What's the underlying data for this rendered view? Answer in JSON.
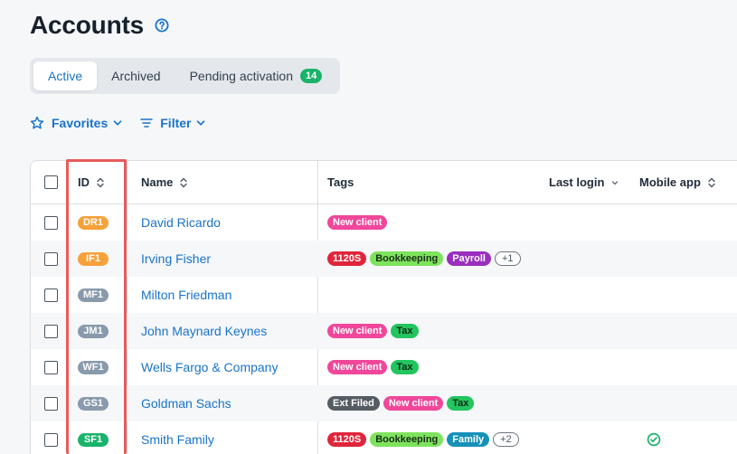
{
  "header": {
    "title": "Accounts",
    "help_icon": "question-circle-icon"
  },
  "tabs": [
    {
      "label": "Active",
      "active": true
    },
    {
      "label": "Archived",
      "active": false
    },
    {
      "label": "Pending activation",
      "active": false,
      "badge": "14"
    }
  ],
  "toolbar": {
    "favorites_label": "Favorites",
    "filter_label": "Filter"
  },
  "table": {
    "columns": {
      "id": "ID",
      "name": "Name",
      "tags": "Tags",
      "last_login": "Last login",
      "mobile_app": "Mobile app"
    },
    "rows": [
      {
        "id": "DR1",
        "id_color": "#f7a13a",
        "name": "David Ricardo",
        "tags": [
          {
            "label": "New client",
            "color": "#f0479a",
            "text_color": "#ffffff"
          }
        ],
        "more": "",
        "mobile": false
      },
      {
        "id": "IF1",
        "id_color": "#f7a13a",
        "name": "Irving Fisher",
        "tags": [
          {
            "label": "1120S",
            "color": "#e0253b",
            "text_color": "#ffffff"
          },
          {
            "label": "Bookkeeping",
            "color": "#7ee35c",
            "text_color": "#17301a"
          },
          {
            "label": "Payroll",
            "color": "#9a2fbd",
            "text_color": "#ffffff"
          }
        ],
        "more": "+1",
        "mobile": false
      },
      {
        "id": "MF1",
        "id_color": "#8a9aad",
        "name": "Milton Friedman",
        "tags": [],
        "more": "",
        "mobile": false
      },
      {
        "id": "JM1",
        "id_color": "#8a9aad",
        "name": "John Maynard Keynes",
        "tags": [
          {
            "label": "New client",
            "color": "#f0479a",
            "text_color": "#ffffff"
          },
          {
            "label": "Tax",
            "color": "#22c55e",
            "text_color": "#102a17"
          }
        ],
        "more": "",
        "mobile": false
      },
      {
        "id": "WF1",
        "id_color": "#8a9aad",
        "name": "Wells Fargo & Company",
        "tags": [
          {
            "label": "New client",
            "color": "#f0479a",
            "text_color": "#ffffff"
          },
          {
            "label": "Tax",
            "color": "#22c55e",
            "text_color": "#102a17"
          }
        ],
        "more": "",
        "mobile": false
      },
      {
        "id": "GS1",
        "id_color": "#8a9aad",
        "name": "Goldman Sachs",
        "tags": [
          {
            "label": "Ext Filed",
            "color": "#555c63",
            "text_color": "#ffffff"
          },
          {
            "label": "New client",
            "color": "#f0479a",
            "text_color": "#ffffff"
          },
          {
            "label": "Tax",
            "color": "#22c55e",
            "text_color": "#102a17"
          }
        ],
        "more": "",
        "mobile": false
      },
      {
        "id": "SF1",
        "id_color": "#19b36b",
        "name": "Smith Family",
        "tags": [
          {
            "label": "1120S",
            "color": "#e0253b",
            "text_color": "#ffffff"
          },
          {
            "label": "Bookkeeping",
            "color": "#7ee35c",
            "text_color": "#17301a"
          },
          {
            "label": "Family",
            "color": "#1591b8",
            "text_color": "#ffffff"
          }
        ],
        "more": "+2",
        "mobile": true
      }
    ]
  },
  "colors": {
    "accent": "#1a73c8",
    "highlight": "#e85b5b",
    "mobile_check": "#19b36b"
  }
}
